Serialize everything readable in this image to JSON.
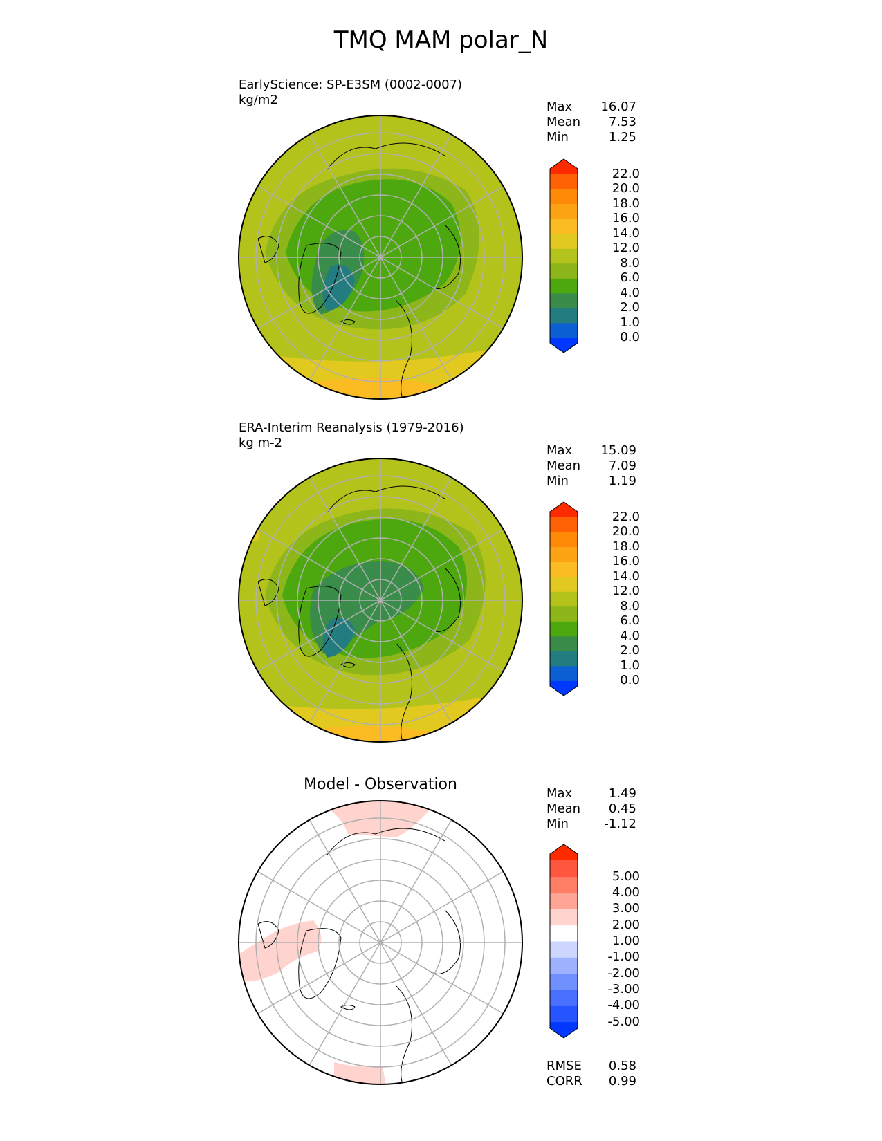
{
  "title": "TMQ MAM polar_N",
  "colors": {
    "ocean_high": "#b4c31c",
    "mid_green": "#8cb619",
    "green": "#4da810",
    "dark_green": "#3a8c4a",
    "teal": "#237d80",
    "warm_yellow": "#e2c91f",
    "orange_yellow": "#fbbb22",
    "diff_pink": "#ffd3ce",
    "grid": "#b0b0b0",
    "coast": "#000000"
  },
  "panels": [
    {
      "title_line1": "EarlyScience: SP-E3SM (0002-0007)",
      "title_line2": "kg/m2",
      "stats": {
        "max_label": "Max",
        "max": "16.07",
        "mean_label": "Mean",
        "mean": "7.53",
        "min_label": "Min",
        "min": "1.25"
      },
      "colorbar": {
        "colors": [
          "#0038ff",
          "#0b5fd3",
          "#237d80",
          "#3a8c4a",
          "#4da810",
          "#8cb619",
          "#b4c31c",
          "#e2c91f",
          "#fbbb22",
          "#fda414",
          "#ff8a08",
          "#ff6204",
          "#ff2b00"
        ],
        "labels": [
          "0.0",
          "1.0",
          "2.0",
          "4.0",
          "6.0",
          "8.0",
          "12.0",
          "14.0",
          "16.0",
          "18.0",
          "20.0",
          "22.0"
        ]
      }
    },
    {
      "title_line1": "ERA-Interim Reanalysis (1979-2016)",
      "title_line2": "kg m-2",
      "stats": {
        "max_label": "Max",
        "max": "15.09",
        "mean_label": "Mean",
        "mean": "7.09",
        "min_label": "Min",
        "min": "1.19"
      },
      "colorbar": {
        "colors": [
          "#0038ff",
          "#0b5fd3",
          "#237d80",
          "#3a8c4a",
          "#4da810",
          "#8cb619",
          "#b4c31c",
          "#e2c91f",
          "#fbbb22",
          "#fda414",
          "#ff8a08",
          "#ff6204",
          "#ff2b00"
        ],
        "labels": [
          "0.0",
          "1.0",
          "2.0",
          "4.0",
          "6.0",
          "8.0",
          "12.0",
          "14.0",
          "16.0",
          "18.0",
          "20.0",
          "22.0"
        ]
      }
    },
    {
      "title": "Model - Observation",
      "stats": {
        "max_label": "Max",
        "max": "1.49",
        "mean_label": "Mean",
        "mean": "0.45",
        "min_label": "Min",
        "min": "-1.12"
      },
      "colorbar": {
        "colors": [
          "#0038ff",
          "#2655ff",
          "#4a70ff",
          "#7090ff",
          "#9db1ff",
          "#ccd6ff",
          "#ffffff",
          "#ffd3ce",
          "#ffa595",
          "#ff7e66",
          "#ff5640",
          "#ff2b00"
        ],
        "labels": [
          "-5.00",
          "-4.00",
          "-3.00",
          "-2.00",
          "-1.00",
          "1.00",
          "2.00",
          "3.00",
          "4.00",
          "5.00"
        ]
      },
      "metrics": {
        "rmse_label": "RMSE",
        "rmse": "0.58",
        "corr_label": "CORR",
        "corr": "0.99"
      }
    }
  ]
}
